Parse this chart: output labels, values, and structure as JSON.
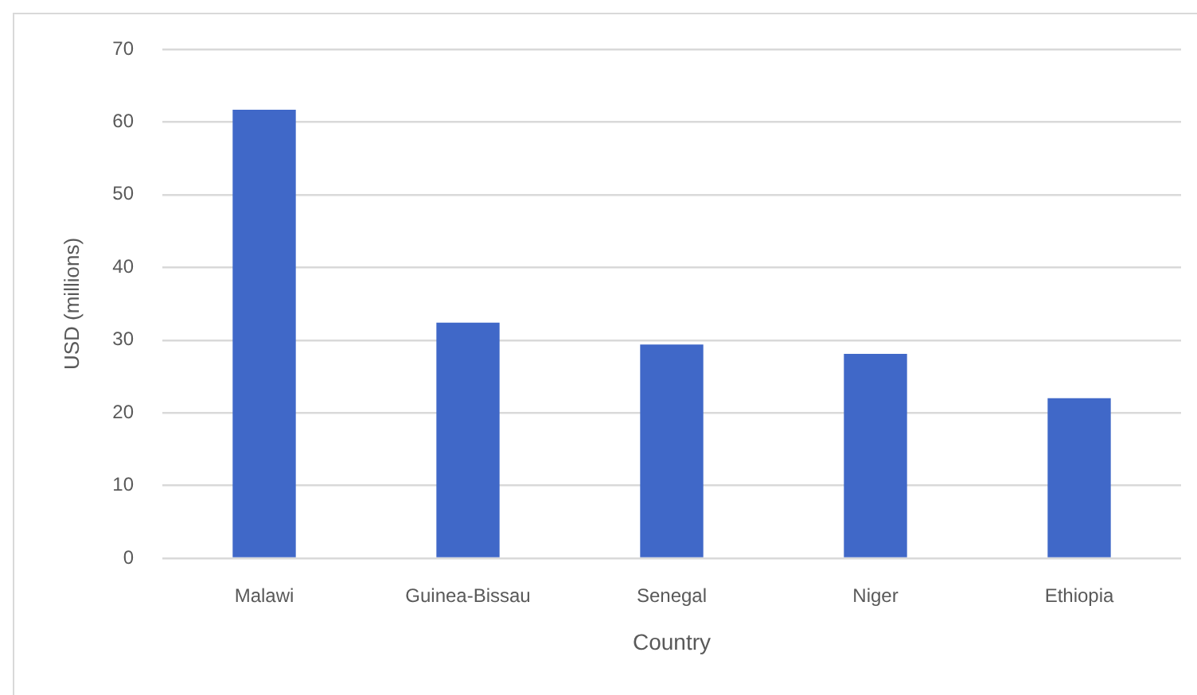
{
  "chart_data": {
    "type": "bar",
    "xlabel": "Country",
    "ylabel": "USD (millions)",
    "categories": [
      "Malawi",
      "Guinea-Bissau",
      "Senegal",
      "Niger",
      "Ethiopia"
    ],
    "values": [
      61.7,
      32.4,
      29.4,
      28.1,
      22.0
    ],
    "color": "#4068c8",
    "ylim": [
      0,
      70
    ],
    "yticks": [
      0,
      10,
      20,
      30,
      40,
      50,
      60,
      70
    ],
    "grid": "y",
    "legend": false
  }
}
